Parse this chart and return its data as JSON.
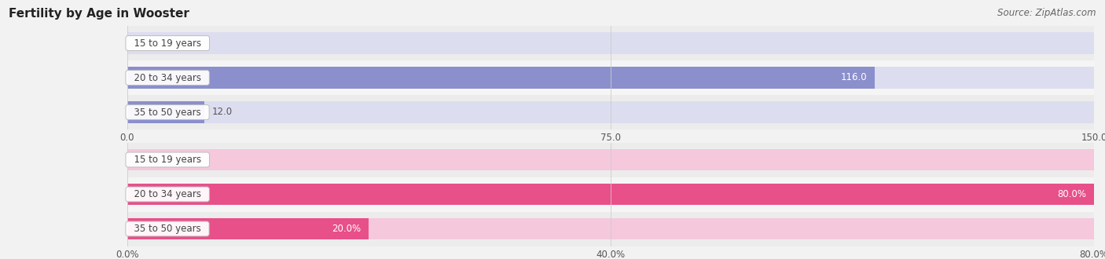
{
  "title": "Fertility by Age in Wooster",
  "source": "Source: ZipAtlas.com",
  "background_color": "#f2f2f2",
  "top_chart": {
    "categories": [
      "35 to 50 years",
      "20 to 34 years",
      "15 to 19 years"
    ],
    "values": [
      12.0,
      116.0,
      0.0
    ],
    "xlim": [
      0,
      150
    ],
    "xticks": [
      0.0,
      75.0,
      150.0
    ],
    "bar_color": "#8b8fcc",
    "bar_bg_color": "#ddddf0",
    "label_inside_color": "#ffffff",
    "label_outside_color": "#555555"
  },
  "bottom_chart": {
    "categories": [
      "35 to 50 years",
      "20 to 34 years",
      "15 to 19 years"
    ],
    "values": [
      20.0,
      80.0,
      0.0
    ],
    "xlim": [
      0,
      80
    ],
    "xticks": [
      0.0,
      40.0,
      80.0
    ],
    "xtick_labels": [
      "0.0%",
      "40.0%",
      "80.0%"
    ],
    "bar_color": "#e8508a",
    "bar_bg_color": "#f5c8dc",
    "label_inside_color": "#ffffff",
    "label_outside_color": "#555555"
  },
  "label_text_color": "#444444",
  "grid_color": "#cccccc",
  "font_size_title": 11,
  "font_size_labels": 8.5,
  "font_size_values": 8.5,
  "font_size_ticks": 8.5,
  "font_size_source": 8.5
}
